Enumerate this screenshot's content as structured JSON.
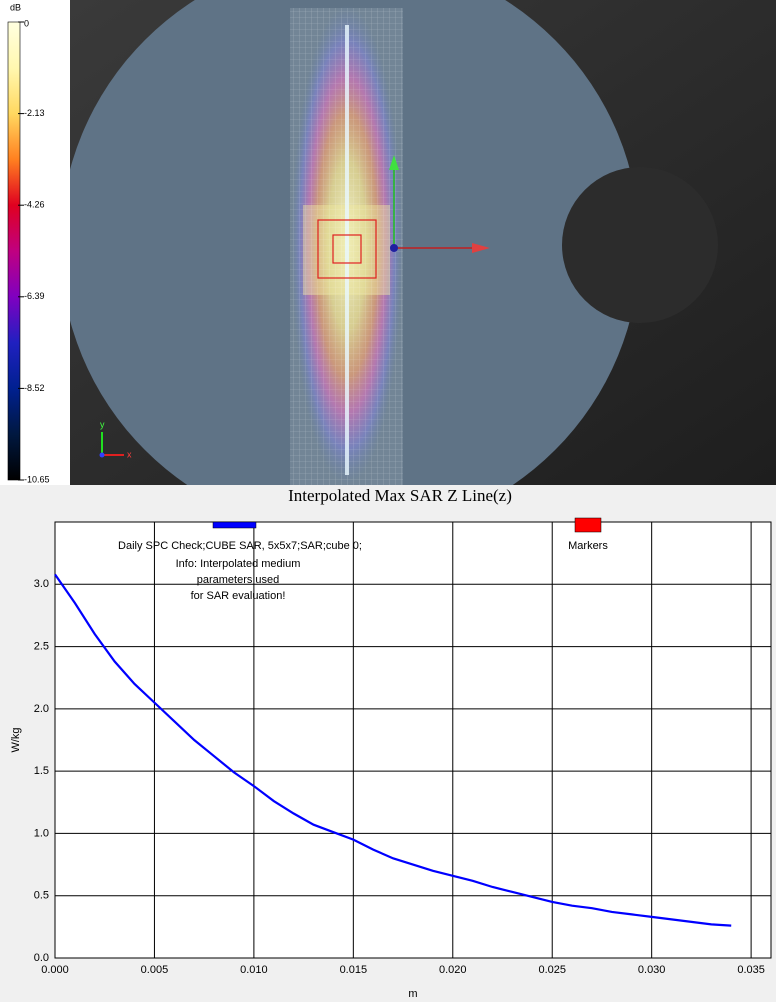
{
  "view": {
    "colorbar_unit": "dB",
    "colorbar_ticks": [
      0,
      -2.13,
      -4.26,
      -6.39,
      -8.52,
      -10.65
    ],
    "axis_labels": [
      "y",
      "x"
    ]
  },
  "chart_data": {
    "type": "line",
    "title": "Interpolated Max SAR Z Line(z)",
    "x_label": "m",
    "y_label": "W/kg",
    "annotation": [
      "Info: Interpolated medium",
      "parameters used",
      "for SAR evaluation!"
    ],
    "x": [
      0,
      0.001,
      0.002,
      0.003,
      0.004,
      0.005,
      0.006,
      0.007,
      0.008,
      0.009,
      0.01,
      0.011,
      0.012,
      0.013,
      0.014,
      0.015,
      0.016,
      0.017,
      0.018,
      0.019,
      0.02,
      0.021,
      0.022,
      0.023,
      0.024,
      0.025,
      0.026,
      0.027,
      0.028,
      0.029,
      0.03,
      0.031,
      0.032,
      0.033,
      0.034
    ],
    "series": [
      {
        "name": "Daily SPC Check;CUBE SAR, 5x5x7;SAR;cube 0;",
        "color": "#0000ff",
        "values": [
          3.08,
          2.85,
          2.6,
          2.38,
          2.2,
          2.05,
          1.9,
          1.75,
          1.62,
          1.49,
          1.38,
          1.26,
          1.16,
          1.07,
          1.01,
          0.95,
          0.87,
          0.8,
          0.75,
          0.7,
          0.66,
          0.62,
          0.57,
          0.53,
          0.49,
          0.45,
          0.42,
          0.4,
          0.37,
          0.35,
          0.33,
          0.31,
          0.29,
          0.27,
          0.26
        ]
      }
    ],
    "markers": {
      "name": "Markers",
      "color": "#ff0000"
    },
    "xlim": [
      0,
      0.036
    ],
    "ylim": [
      0,
      3.5
    ],
    "xticks": [
      {
        "value": 0,
        "label": "0.000"
      },
      {
        "value": 0.005,
        "label": "0.005"
      },
      {
        "value": 0.01,
        "label": "0.010"
      },
      {
        "value": 0.015,
        "label": "0.015"
      },
      {
        "value": 0.02,
        "label": "0.020"
      },
      {
        "value": 0.025,
        "label": "0.025"
      },
      {
        "value": 0.03,
        "label": "0.030"
      },
      {
        "value": 0.035,
        "label": "0.035"
      }
    ],
    "yticks": [
      {
        "value": 0,
        "label": "0.0"
      },
      {
        "value": 0.5,
        "label": "0.5"
      },
      {
        "value": 1,
        "label": "1.0"
      },
      {
        "value": 1.5,
        "label": "1.5"
      },
      {
        "value": 2,
        "label": "2.0"
      },
      {
        "value": 2.5,
        "label": "2.5"
      },
      {
        "value": 3,
        "label": "3.0"
      }
    ],
    "grid": true
  }
}
